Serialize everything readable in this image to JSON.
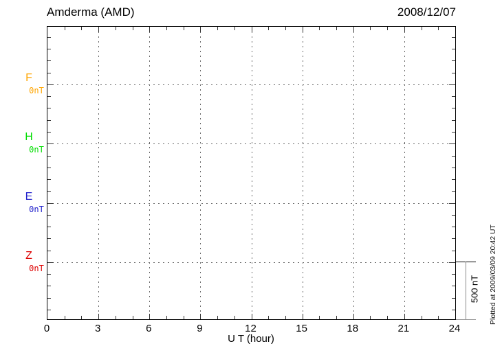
{
  "header": {
    "station_title": "Amderma (AMD)",
    "date": "2008/12/07"
  },
  "left_axis": {
    "components": [
      {
        "label": "F",
        "baseline_value": "0nT",
        "color": "#FFA500"
      },
      {
        "label": "H",
        "baseline_value": "0nT",
        "color": "#00DD00"
      },
      {
        "label": "E",
        "baseline_value": "0nT",
        "color": "#2222CC"
      },
      {
        "label": "Z",
        "baseline_value": "0nT",
        "color": "#DD0000"
      }
    ]
  },
  "x_axis": {
    "label": "U T (hour)",
    "tick_labels": [
      "0",
      "3",
      "6",
      "9",
      "12",
      "15",
      "18",
      "21",
      "24"
    ]
  },
  "right_annotations": {
    "scale_bar_label": "500 nT",
    "plotted_note": "Plotted at 2009/03/09 20:42 UT"
  },
  "chart_data": {
    "type": "line",
    "title": "Amderma (AMD)",
    "date": "2008/12/07",
    "xlabel": "U T (hour)",
    "x_range": [
      0,
      24
    ],
    "x_ticks": [
      0,
      3,
      6,
      9,
      12,
      15,
      18,
      21,
      24
    ],
    "x_minor_tick_interval_hours": 1,
    "grid": true,
    "y_layout": {
      "scale_bar_nT": 500,
      "minor_division_nT": 100,
      "baseline_order_top_to_bottom": [
        "F",
        "H",
        "E",
        "Z"
      ],
      "baseline_labels": [
        "0nT",
        "0nT",
        "0nT",
        "0nT"
      ]
    },
    "series": [
      {
        "name": "F",
        "color": "#FFA500",
        "baseline_label": "0nT",
        "values": []
      },
      {
        "name": "H",
        "color": "#00DD00",
        "baseline_label": "0nT",
        "values": []
      },
      {
        "name": "E",
        "color": "#2222CC",
        "baseline_label": "0nT",
        "values": []
      },
      {
        "name": "Z",
        "color": "#DD0000",
        "baseline_label": "0nT",
        "values": []
      }
    ]
  }
}
